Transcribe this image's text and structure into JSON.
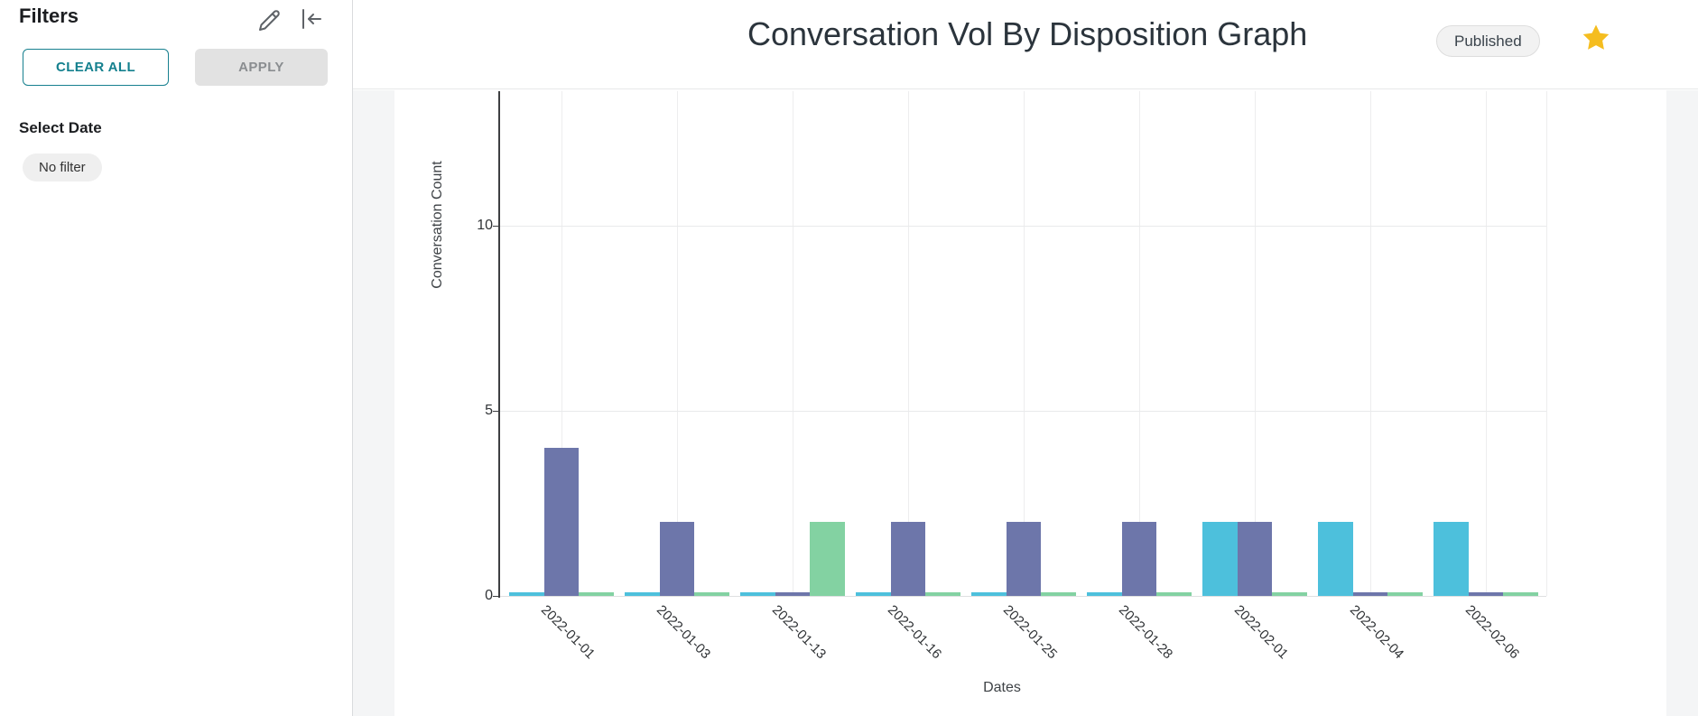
{
  "sidebar": {
    "title": "Filters",
    "clear_all_label": "CLEAR ALL",
    "apply_label": "APPLY",
    "select_date_label": "Select Date",
    "no_filter_label": "No filter"
  },
  "header": {
    "title": "Conversation Vol By Disposition Graph",
    "status_badge": "Published"
  },
  "icons": {
    "sidebar_edit": "pencil-icon",
    "sidebar_collapse": "collapse-left-icon",
    "header_edit": "pencil-underline-icon",
    "header_calendar": "calendar-icon",
    "header_more": "ellipsis-icon",
    "favorite": "star-icon"
  },
  "colors": {
    "accent_teal": "#14808e",
    "star_gold": "#f5bd1f",
    "bar_blue": "#4dc0dc",
    "bar_purple": "#6d76aa",
    "bar_green": "#83d2a2",
    "grid": "#e9eaeb",
    "axis": "#3d3f42"
  },
  "chart_data": {
    "type": "bar",
    "title": "Conversation Vol By Disposition Graph",
    "xlabel": "Dates",
    "ylabel": "Conversation Count",
    "categories": [
      "2022-01-01",
      "2022-01-03",
      "2022-01-13",
      "2022-01-16",
      "2022-01-25",
      "2022-01-28",
      "2022-02-01",
      "2022-02-04",
      "2022-02-06"
    ],
    "series": [
      {
        "name": "blue-series",
        "color": "#4dc0dc",
        "values": [
          0,
          0,
          0,
          0,
          0,
          0,
          2,
          2,
          2
        ]
      },
      {
        "name": "purple-series",
        "color": "#6d76aa",
        "values": [
          4,
          2,
          0,
          2,
          2,
          2,
          2,
          0,
          0
        ]
      },
      {
        "name": "green-series",
        "color": "#83d2a2",
        "values": [
          0,
          0,
          2,
          0,
          0,
          0,
          0,
          0,
          0
        ]
      }
    ],
    "yticks": [
      0,
      5,
      10
    ],
    "ylim": [
      0,
      13.6
    ],
    "grid": true,
    "legend": false
  }
}
